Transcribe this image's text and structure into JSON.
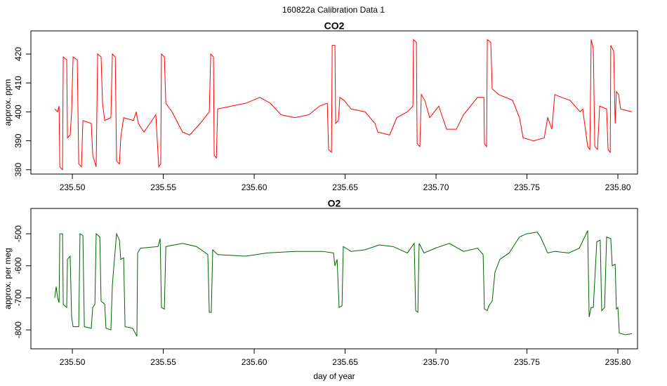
{
  "title": "160822a   Calibration Data 1",
  "chart_data": [
    {
      "type": "line",
      "title": "CO2",
      "ylabel": "approx. ppm",
      "color": "#ff0000",
      "xlim": [
        235.4772,
        235.8108
      ],
      "ylim": [
        378.5,
        428
      ],
      "xticks": [
        {
          "value": 235.5,
          "label": "235.50"
        },
        {
          "value": 235.55,
          "label": "235.55"
        },
        {
          "value": 235.6,
          "label": "235.60"
        },
        {
          "value": 235.65,
          "label": "235.65"
        },
        {
          "value": 235.7,
          "label": "235.70"
        },
        {
          "value": 235.75,
          "label": "235.75"
        },
        {
          "value": 235.8,
          "label": "235.80"
        }
      ],
      "yticks": [
        380,
        390,
        400,
        410,
        420
      ],
      "x": [
        235.4903,
        235.4919,
        235.4927,
        235.4931,
        235.4946,
        235.495,
        235.4969,
        235.4973,
        235.4988,
        235.4996,
        235.5004,
        235.5027,
        235.5035,
        235.505,
        235.5058,
        235.5104,
        235.5112,
        235.5131,
        235.5139,
        235.5158,
        235.5166,
        235.5178,
        235.5212,
        235.522,
        235.5236,
        235.5243,
        235.5259,
        235.5266,
        235.5282,
        235.5336,
        235.5351,
        235.5363,
        235.5394,
        235.5459,
        235.5475,
        235.5486,
        235.549,
        235.5506,
        235.5514,
        235.5548,
        235.5606,
        235.5645,
        235.5703,
        235.5753,
        235.5761,
        235.5776,
        235.578,
        235.5792,
        235.5799,
        235.5876,
        235.5954,
        235.6031,
        235.6089,
        235.6147,
        235.6224,
        235.6301,
        235.6359,
        235.6402,
        235.6409,
        235.6425,
        235.6429,
        235.6444,
        235.6448,
        235.6463,
        235.6471,
        235.6494,
        235.6533,
        235.661,
        235.6664,
        235.668,
        235.6745,
        235.6784,
        235.6842,
        235.6873,
        235.6876,
        235.6892,
        235.6896,
        235.6911,
        235.6919,
        235.6938,
        235.6965,
        235.7015,
        235.7058,
        235.7112,
        235.7151,
        235.7228,
        235.7263,
        235.7266,
        235.7278,
        235.7282,
        235.7301,
        235.7309,
        235.7344,
        235.7421,
        235.7459,
        235.7479,
        235.7537,
        235.7595,
        235.7614,
        235.7637,
        235.7653,
        235.7691,
        235.7737,
        235.7792,
        235.7807,
        235.7815,
        235.7834,
        235.7846,
        235.7853,
        235.7865,
        235.7873,
        235.7888,
        235.79,
        235.7938,
        235.7946,
        235.7958,
        235.7961,
        235.7977,
        235.7985,
        235.7992,
        235.8004,
        235.8015,
        235.8077
      ],
      "values": [
        401,
        400,
        402,
        381,
        380,
        419,
        418,
        391,
        392,
        400,
        419,
        418,
        382,
        381,
        397,
        396,
        385,
        381,
        420,
        419,
        403,
        397,
        398,
        420,
        419,
        383,
        382,
        391,
        398,
        397,
        400,
        396,
        393,
        399,
        381,
        382,
        420,
        419,
        403,
        400,
        393,
        392,
        396,
        400,
        420,
        419,
        385,
        384,
        401,
        402,
        403,
        405,
        403,
        399,
        398,
        399,
        402,
        403,
        387,
        386,
        423,
        423,
        396,
        397,
        405,
        404,
        401,
        400,
        396,
        393,
        392,
        398,
        400,
        402,
        425,
        424,
        389,
        388,
        406,
        404,
        398,
        402,
        394,
        394,
        399,
        405,
        405,
        389,
        388,
        425,
        424,
        408,
        406,
        404,
        398,
        391,
        390,
        391,
        398,
        394,
        406,
        405,
        404,
        400,
        401,
        397,
        388,
        387,
        425,
        422,
        388,
        387,
        402,
        401,
        387,
        386,
        423,
        421,
        396,
        407,
        406,
        401,
        400
      ]
    },
    {
      "type": "line",
      "title": "O2",
      "ylabel": "approx. per meg",
      "xlabel": "day of year",
      "color": "#006400",
      "xlim": [
        235.4772,
        235.8108
      ],
      "ylim": [
        -859,
        -421
      ],
      "xticks": [
        {
          "value": 235.5,
          "label": "235.50"
        },
        {
          "value": 235.55,
          "label": "235.55"
        },
        {
          "value": 235.6,
          "label": "235.60"
        },
        {
          "value": 235.65,
          "label": "235.65"
        },
        {
          "value": 235.7,
          "label": "235.70"
        },
        {
          "value": 235.75,
          "label": "235.75"
        },
        {
          "value": 235.8,
          "label": "235.80"
        }
      ],
      "yticks": [
        -800,
        -700,
        -600,
        -500
      ],
      "x": [
        235.4903,
        235.4911,
        235.4919,
        235.4927,
        235.4931,
        235.4946,
        235.495,
        235.4969,
        235.4973,
        235.4988,
        235.4996,
        235.5004,
        235.5035,
        235.5042,
        235.5058,
        235.5066,
        235.5104,
        235.5112,
        235.5124,
        235.5131,
        235.5151,
        235.5158,
        235.5178,
        235.5185,
        235.5212,
        235.522,
        235.5243,
        235.5259,
        235.5266,
        235.5282,
        235.529,
        235.5332,
        235.5355,
        235.5359,
        235.5375,
        235.5471,
        235.5483,
        235.549,
        235.5506,
        235.5514,
        235.5606,
        235.5683,
        235.5745,
        235.5753,
        235.5764,
        235.5772,
        235.5799,
        235.5954,
        235.6069,
        235.6224,
        235.6378,
        235.6436,
        235.6444,
        235.6456,
        235.6467,
        235.6483,
        235.649,
        235.6533,
        235.661,
        235.6687,
        235.6764,
        235.6842,
        235.688,
        235.6888,
        235.69,
        235.6907,
        235.6934,
        235.6996,
        235.7073,
        235.7151,
        235.7228,
        235.7259,
        235.7266,
        235.7282,
        235.729,
        235.7309,
        235.7324,
        235.7351,
        235.7402,
        235.7459,
        235.7498,
        235.7556,
        235.7575,
        235.7614,
        235.7653,
        235.773,
        235.7788,
        235.7826,
        235.7834,
        235.7842,
        235.7853,
        235.7865,
        235.7884,
        235.7903,
        235.7911,
        235.7927,
        235.7938,
        235.7961,
        235.7969,
        235.7985,
        235.7992,
        235.8,
        235.8008,
        235.8039,
        235.8077
      ],
      "values": [
        -700,
        -665,
        -700,
        -715,
        -500,
        -500,
        -720,
        -730,
        -580,
        -570,
        -760,
        -790,
        -790,
        -500,
        -505,
        -790,
        -795,
        -730,
        -720,
        -500,
        -510,
        -710,
        -720,
        -795,
        -800,
        -660,
        -500,
        -520,
        -580,
        -575,
        -790,
        -795,
        -820,
        -560,
        -545,
        -540,
        -515,
        -730,
        -735,
        -540,
        -530,
        -540,
        -565,
        -745,
        -745,
        -550,
        -565,
        -570,
        -560,
        -555,
        -555,
        -560,
        -600,
        -580,
        -730,
        -725,
        -540,
        -555,
        -550,
        -535,
        -540,
        -560,
        -530,
        -740,
        -745,
        -530,
        -560,
        -545,
        -530,
        -555,
        -545,
        -565,
        -735,
        -740,
        -725,
        -710,
        -620,
        -580,
        -560,
        -510,
        -500,
        -495,
        -510,
        -560,
        -555,
        -560,
        -545,
        -500,
        -490,
        -760,
        -730,
        -730,
        -525,
        -520,
        -740,
        -730,
        -510,
        -515,
        -600,
        -595,
        -735,
        -730,
        -810,
        -815,
        -812
      ]
    }
  ]
}
